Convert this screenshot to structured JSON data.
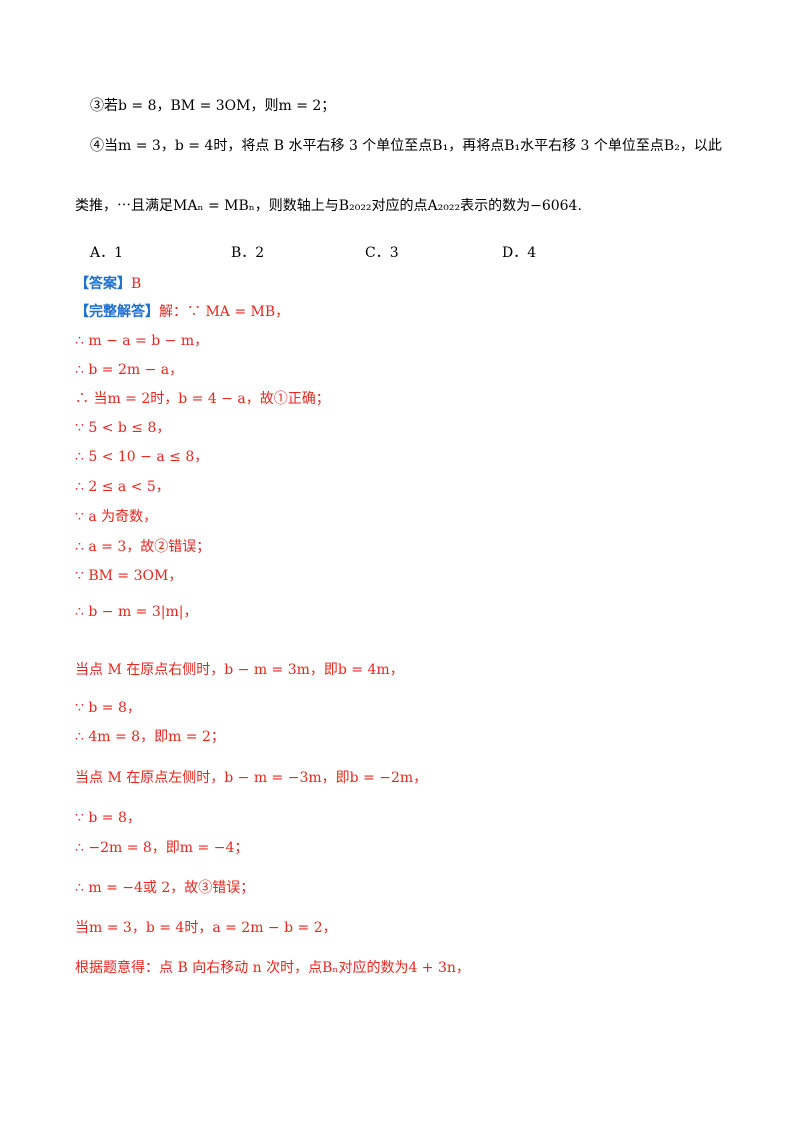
{
  "lines": [
    {
      "text": "③若b = 8，BM = 3OM，则m = 2；",
      "color": "#000000"
    },
    {
      "text": "④当m = 3，b = 4时，将点 B 水平右移 3 个单位至点B₁，再将点B₁水平右移 3 个单位至点B₂，以此",
      "color": "#000000"
    },
    {
      "text": "类推，⋯且满足MAₙ = MBₙ，则数轴上与B₂₀₂₂对应的点A₂₀₂₂表示的数为−6064.",
      "color": "#000000"
    }
  ],
  "options": [
    "A．1",
    "B．2",
    "C．3",
    "D．4"
  ],
  "answer_label": "【答案】",
  "answer_value": "B",
  "solution_label": "【完整解答】",
  "solution_first": "解：∵ MA = MB，",
  "solution": [
    "∴ m − a = b − m，",
    "∴ b = 2m − a，",
    "∴ 当m = 2时，b = 4 − a，故①正确；",
    "∵ 5 < b ≤ 8，",
    "∴ 5 < 10 − a ≤ 8，",
    "∴ 2 ≤ a < 5，",
    "∵ a 为奇数，",
    "∴ a = 3，故②错误；",
    "∵ BM = 3OM，",
    "∴ b − m = 3|m|，",
    "当点 M 在原点右侧时，b − m = 3m，即b = 4m，",
    "∵ b = 8，",
    "∴ 4m = 8，即m = 2；",
    "当点 M 在原点左侧时，b − m = −3m，即b = −2m，",
    "∵ b = 8，",
    "∴ −2m = 8，即m = −4；",
    "∴ m = −4或 2，故③错误；",
    "当m = 3，b = 4时，a = 2m − b = 2，",
    "根据题意得：点 B 向右移动 n 次时，点Bₙ对应的数为4 + 3n，"
  ]
}
